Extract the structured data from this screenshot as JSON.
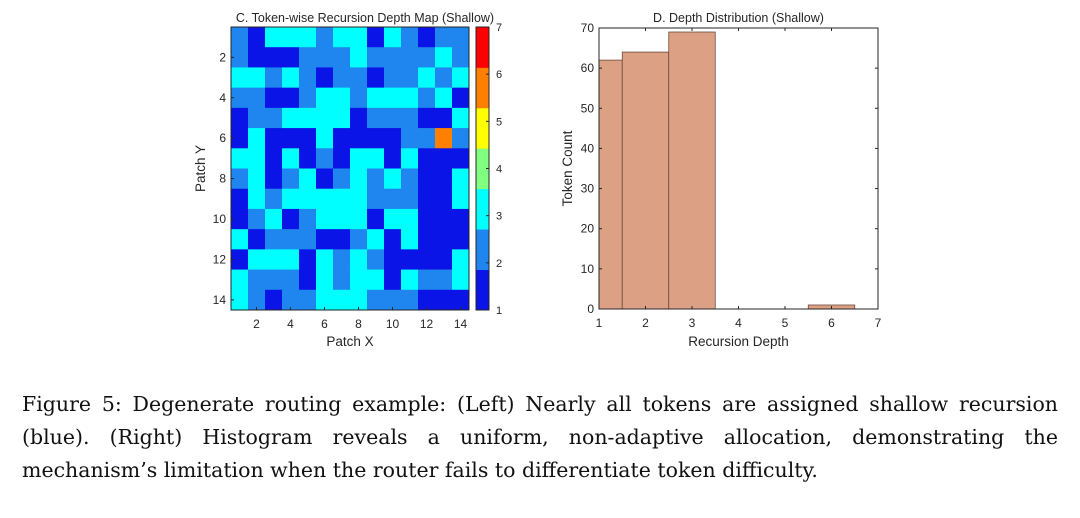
{
  "chart_data": [
    {
      "type": "heatmap",
      "title": "C. Token-wise Recursion Depth Map (Shallow)",
      "xlabel": "Patch X",
      "ylabel": "Patch Y",
      "xticks": [
        2,
        4,
        6,
        8,
        10,
        12,
        14
      ],
      "yticks": [
        2,
        4,
        6,
        8,
        10,
        12,
        14
      ],
      "colorbar": {
        "range": [
          1,
          7
        ],
        "ticks": [
          1,
          2,
          3,
          4,
          5,
          6,
          7
        ],
        "colors": [
          "#0a14e6",
          "#1f86f0",
          "#00ffff",
          "#80ff80",
          "#ffff00",
          "#ff8000",
          "#ff0000"
        ]
      },
      "values": [
        [
          2,
          1,
          3,
          3,
          3,
          2,
          3,
          3,
          1,
          3,
          2,
          1,
          2,
          2
        ],
        [
          2,
          1,
          1,
          1,
          2,
          2,
          2,
          3,
          2,
          2,
          2,
          2,
          3,
          2
        ],
        [
          3,
          3,
          2,
          3,
          2,
          1,
          2,
          2,
          1,
          2,
          2,
          3,
          2,
          3
        ],
        [
          2,
          2,
          1,
          1,
          2,
          3,
          3,
          2,
          3,
          3,
          3,
          2,
          3,
          1
        ],
        [
          1,
          2,
          2,
          3,
          3,
          3,
          3,
          1,
          2,
          2,
          2,
          1,
          1,
          3
        ],
        [
          1,
          3,
          1,
          1,
          1,
          3,
          1,
          1,
          1,
          1,
          2,
          2,
          6,
          2
        ],
        [
          3,
          3,
          1,
          3,
          1,
          2,
          1,
          3,
          3,
          1,
          3,
          1,
          1,
          1
        ],
        [
          2,
          3,
          1,
          2,
          3,
          1,
          2,
          3,
          2,
          3,
          2,
          1,
          1,
          3
        ],
        [
          1,
          3,
          2,
          3,
          3,
          3,
          3,
          3,
          2,
          2,
          2,
          1,
          1,
          3
        ],
        [
          1,
          2,
          3,
          1,
          2,
          3,
          3,
          3,
          1,
          3,
          3,
          1,
          1,
          1
        ],
        [
          3,
          1,
          2,
          2,
          2,
          1,
          1,
          2,
          3,
          1,
          3,
          1,
          1,
          1
        ],
        [
          1,
          3,
          3,
          3,
          1,
          3,
          2,
          3,
          2,
          1,
          1,
          1,
          1,
          3
        ],
        [
          3,
          2,
          2,
          2,
          1,
          3,
          2,
          3,
          3,
          1,
          3,
          2,
          2,
          3
        ],
        [
          3,
          2,
          1,
          2,
          2,
          3,
          3,
          3,
          2,
          2,
          2,
          1,
          1,
          1
        ]
      ]
    },
    {
      "type": "bar",
      "title": "D. Depth Distribution (Shallow)",
      "xlabel": "Recursion Depth",
      "ylabel": "Token Count",
      "xlim": [
        1,
        7
      ],
      "ylim": [
        0,
        70
      ],
      "xticks": [
        1,
        2,
        3,
        4,
        5,
        6,
        7
      ],
      "yticks": [
        0,
        10,
        20,
        30,
        40,
        50,
        60,
        70
      ],
      "bar_color": "#dca184",
      "bins": [
        {
          "from": 1,
          "to": 1.5,
          "value": 62
        },
        {
          "from": 1.5,
          "to": 2.5,
          "value": 64
        },
        {
          "from": 2.5,
          "to": 3.5,
          "value": 69
        },
        {
          "from": 5.5,
          "to": 6.5,
          "value": 1
        }
      ]
    }
  ],
  "caption": "Figure 5: Degenerate routing example: (Left) Nearly all tokens are assigned shallow recursion (blue). (Right) Histogram reveals a uniform, non-adaptive allocation, demonstrating the mechanism’s limitation when the router fails to differentiate token difficulty."
}
